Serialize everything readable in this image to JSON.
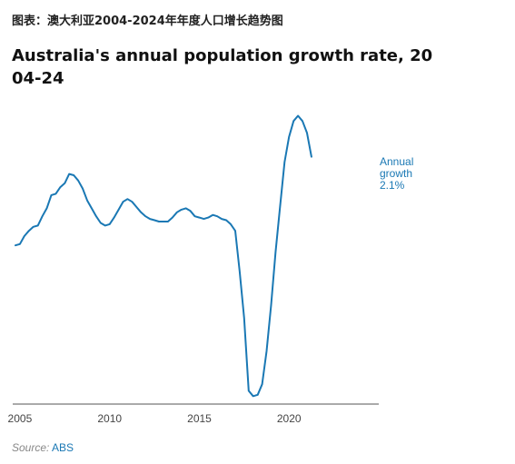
{
  "caption": "图表：澳大利亚2004-2024年年度人口增长趋势图",
  "chart_data": {
    "type": "line",
    "title": "Australia's annual population growth rate, 2004-24",
    "xlabel": "",
    "ylabel": "",
    "x_ticks": [
      "2005",
      "2010",
      "2015",
      "2020"
    ],
    "xlim": [
      2004.6,
      2025.0
    ],
    "ylim": [
      -0.05,
      2.25
    ],
    "grid": false,
    "annotation": [
      "Annual",
      "growth",
      "2.1%"
    ],
    "annotation_color": "#1a78b4",
    "line_color": "#1a78b4",
    "series": [
      {
        "values": [
          [
            2004.75,
            1.15
          ],
          [
            2005.0,
            1.16
          ],
          [
            2005.25,
            1.22
          ],
          [
            2005.5,
            1.26
          ],
          [
            2005.75,
            1.29
          ],
          [
            2006.0,
            1.3
          ],
          [
            2006.25,
            1.37
          ],
          [
            2006.5,
            1.43
          ],
          [
            2006.75,
            1.53
          ],
          [
            2007.0,
            1.54
          ],
          [
            2007.25,
            1.59
          ],
          [
            2007.5,
            1.62
          ],
          [
            2007.75,
            1.69
          ],
          [
            2008.0,
            1.68
          ],
          [
            2008.25,
            1.64
          ],
          [
            2008.5,
            1.58
          ],
          [
            2008.75,
            1.49
          ],
          [
            2009.0,
            1.43
          ],
          [
            2009.25,
            1.37
          ],
          [
            2009.5,
            1.32
          ],
          [
            2009.75,
            1.3
          ],
          [
            2010.0,
            1.31
          ],
          [
            2010.25,
            1.36
          ],
          [
            2010.5,
            1.42
          ],
          [
            2010.75,
            1.48
          ],
          [
            2011.0,
            1.5
          ],
          [
            2011.25,
            1.48
          ],
          [
            2011.5,
            1.44
          ],
          [
            2011.75,
            1.4
          ],
          [
            2012.0,
            1.37
          ],
          [
            2012.25,
            1.35
          ],
          [
            2012.5,
            1.34
          ],
          [
            2012.75,
            1.33
          ],
          [
            2013.0,
            1.33
          ],
          [
            2013.25,
            1.33
          ],
          [
            2013.5,
            1.36
          ],
          [
            2013.75,
            1.4
          ],
          [
            2014.0,
            1.42
          ],
          [
            2014.25,
            1.43
          ],
          [
            2014.5,
            1.41
          ],
          [
            2014.75,
            1.37
          ],
          [
            2015.0,
            1.36
          ],
          [
            2015.25,
            1.35
          ],
          [
            2015.5,
            1.36
          ],
          [
            2015.75,
            1.38
          ],
          [
            2016.0,
            1.37
          ],
          [
            2016.25,
            1.35
          ],
          [
            2016.5,
            1.34
          ],
          [
            2016.75,
            1.31
          ],
          [
            2017.0,
            1.26
          ],
          [
            2017.25,
            0.95
          ],
          [
            2017.5,
            0.6
          ],
          [
            2017.75,
            0.05
          ],
          [
            2018.0,
            0.01
          ],
          [
            2018.25,
            0.02
          ],
          [
            2018.5,
            0.1
          ],
          [
            2018.75,
            0.35
          ],
          [
            2019.0,
            0.7
          ],
          [
            2019.25,
            1.1
          ],
          [
            2019.5,
            1.44
          ],
          [
            2019.75,
            1.78
          ],
          [
            2020.0,
            1.97
          ],
          [
            2020.25,
            2.09
          ],
          [
            2020.5,
            2.13
          ],
          [
            2020.75,
            2.09
          ],
          [
            2021.0,
            2.0
          ],
          [
            2021.25,
            1.82
          ]
        ]
      }
    ]
  },
  "source": {
    "label": "Source:",
    "value": "ABS"
  }
}
